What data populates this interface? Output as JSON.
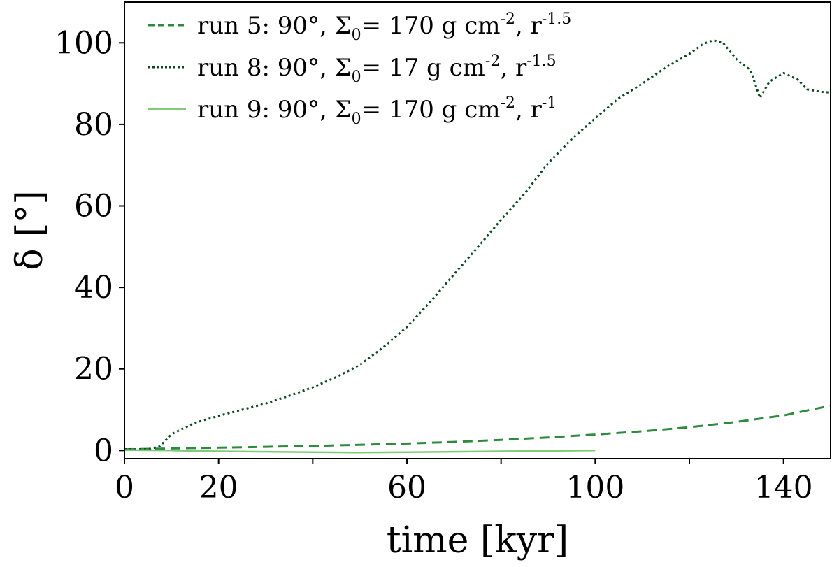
{
  "chart_data": {
    "type": "line",
    "xlabel": "time [kyr]",
    "ylabel": "δ [°]",
    "xlim": [
      0,
      150
    ],
    "ylim": [
      -2,
      110
    ],
    "xticks": [
      0,
      20,
      60,
      100,
      140
    ],
    "xticks_minor": [
      40,
      80,
      120
    ],
    "yticks": [
      0,
      20,
      40,
      60,
      80,
      100
    ],
    "grid": false,
    "legend_position": "top-left",
    "series": [
      {
        "id": "run5",
        "label": {
          "main": "run 5: 90°, Σ",
          "sub": "0",
          "mid": "= 170 g cm",
          "sup1": "-2",
          "tail": ", r",
          "sup2": "-1.5"
        },
        "color": "#2e8b3e",
        "style": "dashed",
        "x": [
          0,
          10,
          20,
          30,
          40,
          50,
          60,
          70,
          80,
          90,
          100,
          110,
          120,
          130,
          140,
          150
        ],
        "y": [
          0.3,
          0.5,
          0.7,
          0.9,
          1.1,
          1.4,
          1.7,
          2.1,
          2.6,
          3.2,
          3.9,
          4.7,
          5.7,
          7.0,
          8.6,
          11.0
        ]
      },
      {
        "id": "run8",
        "label": {
          "main": "run 8: 90°, Σ",
          "sub": "0",
          "mid": "=   17 g cm",
          "sup1": "-2",
          "tail": ", r",
          "sup2": "-1.5"
        },
        "color": "#0d4a20",
        "style": "dotted",
        "x": [
          0,
          5,
          7.5,
          10,
          15,
          20,
          25,
          30,
          35,
          40,
          45,
          50,
          55,
          60,
          65,
          70,
          75,
          80,
          85,
          90,
          95,
          100,
          105,
          110,
          115,
          120,
          123,
          125,
          127,
          130,
          133,
          135,
          137,
          140,
          143,
          145,
          148,
          150
        ],
        "y": [
          0.3,
          0.3,
          1.0,
          4.0,
          6.8,
          8.5,
          10.0,
          11.5,
          13.4,
          15.5,
          18.0,
          21.0,
          25.3,
          30.3,
          36.5,
          43.2,
          49.8,
          56.6,
          63.0,
          70.5,
          76.4,
          81.5,
          86.4,
          90.0,
          94.0,
          97.3,
          99.8,
          100.6,
          100.2,
          96.0,
          93.3,
          86.5,
          90.5,
          92.6,
          91.0,
          88.6,
          88.0,
          87.8
        ]
      },
      {
        "id": "run9",
        "label": {
          "main": "run 9: 90°, Σ",
          "sub": "0",
          "mid": "= 170 g cm",
          "sup1": "-2",
          "tail": ", r",
          "sup2": "-1"
        },
        "color": "#7fcb79",
        "style": "solid",
        "x": [
          0,
          10,
          20,
          30,
          40,
          50,
          60,
          70,
          80,
          90,
          100
        ],
        "y": [
          0.1,
          0.0,
          -0.2,
          -0.3,
          -0.4,
          -0.5,
          -0.4,
          -0.3,
          -0.2,
          -0.1,
          0.0
        ]
      }
    ]
  }
}
